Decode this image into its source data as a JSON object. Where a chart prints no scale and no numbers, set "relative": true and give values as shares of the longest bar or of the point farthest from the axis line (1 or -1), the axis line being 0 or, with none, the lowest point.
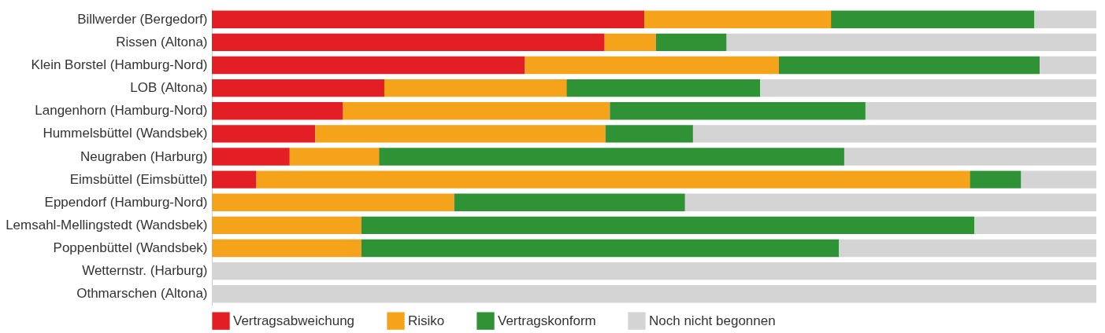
{
  "chart_data": {
    "type": "bar",
    "orientation": "horizontal",
    "stacked": true,
    "relative": true,
    "legend": "bottom",
    "categories": [
      "Billwerder (Bergedorf)",
      "Rissen (Altona)",
      "Klein Borstel (Hamburg-Nord)",
      "LOB (Altona)",
      "Langenhorn (Hamburg-Nord)",
      "Hummelsbüttel (Wandsbek)",
      "Neugraben (Harburg)",
      "Eimsbüttel (Eimsbüttel)",
      "Eppendorf (Hamburg-Nord)",
      "Lemsahl-Mellingstedt (Wandsbek)",
      "Poppenbüttel (Wandsbek)",
      "Wetternstr. (Harburg)",
      "Othmarschen (Altona)"
    ],
    "series": [
      {
        "name": "Vertragsabweichung",
        "color": "#e31e24",
        "values": [
          0.489,
          0.444,
          0.354,
          0.195,
          0.148,
          0.117,
          0.088,
          0.05,
          0,
          0,
          0,
          0,
          0
        ]
      },
      {
        "name": "Risiko",
        "color": "#f5a31a",
        "values": [
          0.211,
          0.058,
          0.287,
          0.206,
          0.302,
          0.328,
          0.101,
          0.807,
          0.274,
          0.169,
          0.169,
          0,
          0
        ]
      },
      {
        "name": "Vertragskonform",
        "color": "#2f9336",
        "values": [
          0.23,
          0.08,
          0.295,
          0.219,
          0.289,
          0.099,
          0.526,
          0.058,
          0.261,
          0.693,
          0.54,
          0,
          0
        ]
      },
      {
        "name": "Noch nicht begonnen",
        "color": "#d4d4d4",
        "values": [
          0.07,
          0.418,
          0.064,
          0.38,
          0.261,
          0.456,
          0.285,
          0.085,
          0.465,
          0.138,
          0.291,
          1,
          1
        ]
      }
    ]
  }
}
